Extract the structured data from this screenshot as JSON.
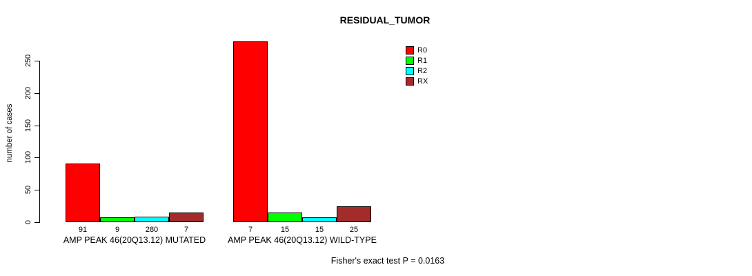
{
  "chart_data": {
    "type": "bar",
    "title": "RESIDUAL_TUMOR",
    "ylabel": "number of cases",
    "xlabel": "",
    "ylim": [
      0,
      280
    ],
    "yticks": [
      "0",
      "50",
      "100",
      "150",
      "200",
      "250"
    ],
    "grid": false,
    "legend_position": "top-right",
    "categories": [
      "AMP PEAK 46(20Q13.12) MUTATED",
      "AMP PEAK 46(20Q13.12) WILD-TYPE"
    ],
    "series": [
      {
        "name": "R0",
        "color": "#ff0000",
        "values": [
          91,
          280
        ]
      },
      {
        "name": "R1",
        "color": "#00ff00",
        "values": [
          7,
          15
        ]
      },
      {
        "name": "R2",
        "color": "#00ffff",
        "values": [
          9,
          7
        ]
      },
      {
        "name": "RX",
        "color": "#a52a2a",
        "values": [
          15,
          25
        ]
      }
    ],
    "bar_value_labels": [
      "91",
      "7",
      "9",
      "15",
      "280",
      "15",
      "7",
      "25"
    ],
    "annotation": "Fisher's exact test P = 0.0163"
  },
  "colors": {
    "axis": "#000000",
    "text": "#000000",
    "background": "#ffffff"
  }
}
